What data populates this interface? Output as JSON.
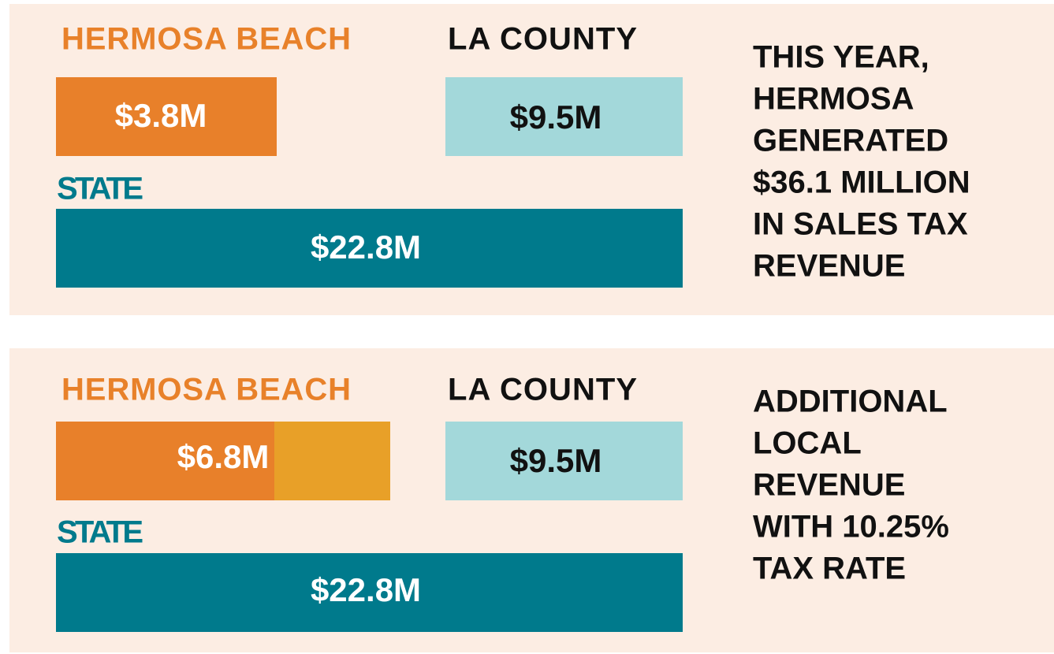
{
  "panels": [
    {
      "hermosa": {
        "label": "HERMOSA BEACH",
        "value": "$3.8M"
      },
      "county": {
        "label": "LA COUNTY",
        "value": "$9.5M"
      },
      "state": {
        "label": "STATE",
        "value": "$22.8M"
      },
      "note": [
        "THIS YEAR,",
        "HERMOSA",
        "GENERATED",
        "$36.1 MILLION",
        "IN SALES TAX",
        "REVENUE"
      ]
    },
    {
      "hermosa": {
        "label": "HERMOSA BEACH",
        "value": "$6.8M"
      },
      "county": {
        "label": "LA COUNTY",
        "value": "$9.5M"
      },
      "state": {
        "label": "STATE",
        "value": "$22.8M"
      },
      "note": [
        "ADDITIONAL",
        "LOCAL",
        "REVENUE",
        "WITH 10.25%",
        "TAX RATE"
      ]
    }
  ]
}
